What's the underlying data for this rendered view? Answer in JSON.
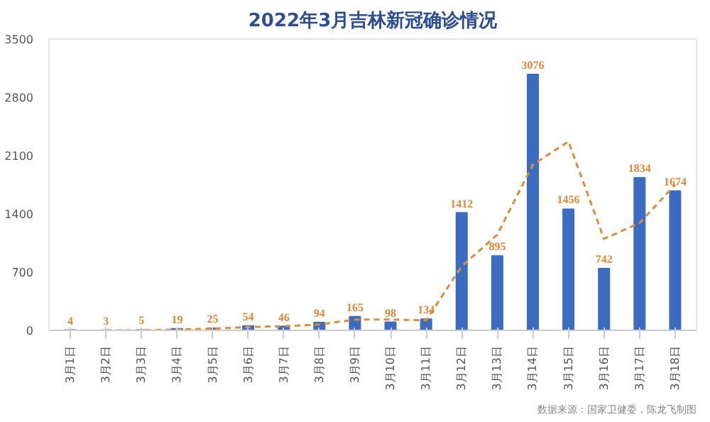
{
  "chart_data": {
    "type": "bar",
    "title": "2022年3月吉林新冠确诊情况",
    "categories": [
      "3月1日",
      "3月2日",
      "3月3日",
      "3月4日",
      "3月5日",
      "3月6日",
      "3月7日",
      "3月8日",
      "3月9日",
      "3月10日",
      "3月11日",
      "3月12日",
      "3月13日",
      "3月14日",
      "3月15日",
      "3月16日",
      "3月17日",
      "3月18日"
    ],
    "series": [
      {
        "color": "#3b6cc0",
        "values": [
          4,
          3,
          5,
          19,
          25,
          54,
          46,
          94,
          165,
          98,
          134,
          1412,
          895,
          3076,
          1456,
          742,
          1834,
          1674
        ],
        "data_labels": true
      },
      {
        "type": "line",
        "color": "#e08a3c",
        "line_style": "dashed",
        "values": [
          null,
          0,
          0,
          10,
          20,
          40,
          50,
          70,
          130,
          130,
          120,
          770,
          1150,
          1990,
          2270,
          1100,
          1290,
          1750
        ]
      }
    ],
    "ylim": [
      0,
      3500
    ],
    "yticks": [
      0,
      700,
      1400,
      2100,
      2800,
      3500
    ],
    "grid": false,
    "annotations": [
      "数据来源：国家卫健委，陈龙飞制图"
    ]
  }
}
